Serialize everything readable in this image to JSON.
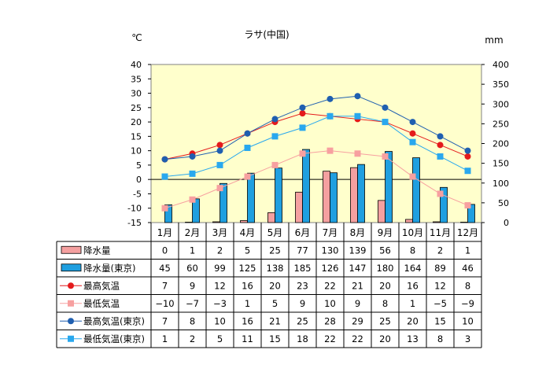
{
  "chart_data": {
    "type": "bar+line+table",
    "title": "ラサ(中国)",
    "ylabel_left": "℃",
    "ylabel_right": "mm",
    "y_left": {
      "min": -15,
      "max": 40,
      "ticks": [
        -15,
        -10,
        -5,
        0,
        5,
        10,
        15,
        20,
        25,
        30,
        35,
        40
      ]
    },
    "y_right": {
      "min": 0,
      "max": 400,
      "ticks": [
        0,
        50,
        100,
        150,
        200,
        250,
        300,
        350,
        400
      ]
    },
    "categories": [
      "1月",
      "2月",
      "3月",
      "4月",
      "5月",
      "6月",
      "7月",
      "8月",
      "9月",
      "10月",
      "11月",
      "12月"
    ],
    "series": [
      {
        "name": "降水量",
        "kind": "bar",
        "axis": "right",
        "color": "#f4a0a0",
        "marker": "bar",
        "values": [
          0,
          1,
          2,
          5,
          25,
          77,
          130,
          139,
          56,
          8,
          2,
          1
        ]
      },
      {
        "name": "降水量(東京)",
        "kind": "bar",
        "axis": "right",
        "color": "#1f9fe0",
        "marker": "bar",
        "values": [
          45,
          60,
          99,
          125,
          138,
          185,
          126,
          147,
          180,
          164,
          89,
          46
        ]
      },
      {
        "name": "最高気温",
        "kind": "line",
        "axis": "left",
        "color": "#e41a1c",
        "marker": "circle",
        "values": [
          7,
          9,
          12,
          16,
          20,
          23,
          22,
          21,
          20,
          16,
          12,
          8
        ]
      },
      {
        "name": "最低気温",
        "kind": "line",
        "axis": "left",
        "color": "#f7a0a0",
        "marker": "square",
        "values": [
          -10,
          -7,
          -3,
          1,
          5,
          9,
          10,
          9,
          8,
          1,
          -5,
          -9
        ]
      },
      {
        "name": "最高気温(東京)",
        "kind": "line",
        "axis": "left",
        "color": "#1f5fb0",
        "marker": "circle",
        "values": [
          7,
          8,
          10,
          16,
          21,
          25,
          28,
          29,
          25,
          20,
          15,
          10
        ]
      },
      {
        "name": "最低気温(東京)",
        "kind": "line",
        "axis": "left",
        "color": "#29a8ee",
        "marker": "square",
        "values": [
          1,
          2,
          5,
          11,
          15,
          18,
          22,
          22,
          20,
          13,
          8,
          3
        ]
      }
    ],
    "plot_background": "#ffffcc",
    "grid": false
  }
}
